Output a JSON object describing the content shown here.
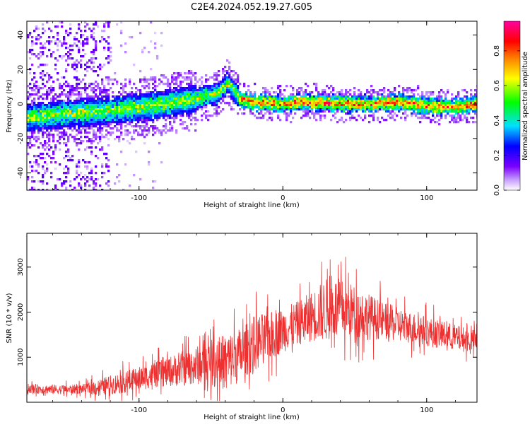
{
  "title": "C2E4.2024.052.19.27.G05",
  "chart_data": [
    {
      "type": "heatmap",
      "xlabel": "Height of straight line (km)",
      "ylabel": "Frequency (Hz)",
      "xlim": [
        -178,
        135
      ],
      "ylim": [
        -50,
        48
      ],
      "x_ticks": [
        -100,
        0,
        100
      ],
      "y_ticks": [
        -40,
        -20,
        0,
        20,
        40
      ],
      "ridge": {
        "x": [
          -178,
          -150,
          -120,
          -100,
          -80,
          -60,
          -45,
          -38,
          -30,
          -20,
          0,
          20,
          40,
          60,
          80,
          100,
          120,
          135
        ],
        "y": [
          -8,
          -6,
          -4,
          -2,
          0,
          3,
          6,
          12,
          3,
          1,
          0,
          1,
          0,
          0,
          1,
          -1,
          -2,
          0
        ]
      },
      "colorbar": {
        "label": "Normalized spectral amplitude",
        "range": [
          0,
          0.97
        ],
        "ticks": [
          0.0,
          0.2,
          0.4,
          0.6,
          0.8
        ],
        "colors": [
          "#ffffff",
          "#c8a0ff",
          "#7a00ff",
          "#0000ff",
          "#00e0ff",
          "#00ff00",
          "#ffff00",
          "#ff8000",
          "#ff0000",
          "#ff00a0"
        ]
      }
    },
    {
      "type": "line",
      "xlabel": "Height of straight line (km)",
      "ylabel": "SNR (10 * v/v)",
      "xlim": [
        -178,
        135
      ],
      "ylim": [
        0,
        3750
      ],
      "x_ticks": [
        -100,
        0,
        100
      ],
      "y_ticks": [
        1000,
        2000,
        3000
      ],
      "color": "#ee3030",
      "envelope": {
        "x": [
          -178,
          -150,
          -138,
          -130,
          -110,
          -90,
          -70,
          -55,
          -40,
          -33,
          -28,
          -20,
          -10,
          0,
          10,
          20,
          30,
          35,
          45,
          55,
          70,
          90,
          110,
          125,
          135
        ],
        "mean": [
          300,
          280,
          300,
          320,
          450,
          600,
          750,
          850,
          900,
          1000,
          1100,
          1300,
          1450,
          1600,
          1750,
          1900,
          2050,
          2100,
          2050,
          1950,
          1800,
          1650,
          1500,
          1400,
          1350
        ],
        "amp": [
          150,
          150,
          150,
          250,
          350,
          400,
          550,
          650,
          900,
          900,
          800,
          900,
          800,
          700,
          700,
          800,
          1000,
          1000,
          900,
          800,
          600,
          500,
          450,
          400,
          350
        ]
      }
    }
  ]
}
